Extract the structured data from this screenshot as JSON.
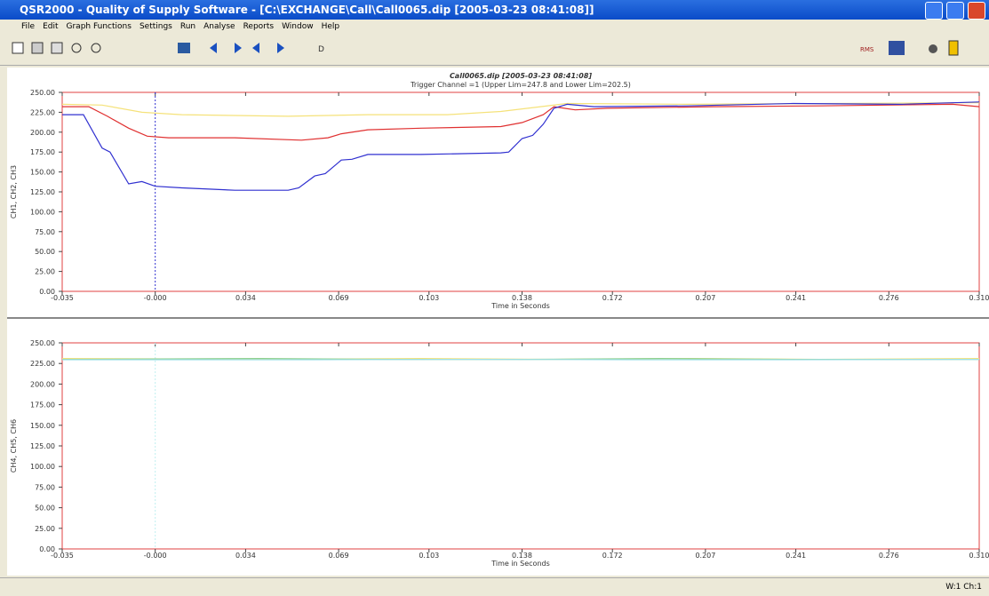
{
  "window": {
    "title": "QSR2000 - Quality of Supply Software - [C:\\EXCHANGE\\Call\\Call0065.dip [2005-03-23 08:41:08]]"
  },
  "menu": [
    "File",
    "Edit",
    "Graph Functions",
    "Settings",
    "Run",
    "Analyse",
    "Reports",
    "Window",
    "Help"
  ],
  "toolbar": {
    "d_label": "D",
    "rms_label": "RMS"
  },
  "status": "W:1 Ch:1",
  "chart_data": [
    {
      "type": "line",
      "title": "Call0065.dip [2005-03-23 08:41:08]",
      "subtitle": "Trigger Channel =1 (Upper Lim=247.8 and Lower Lim=202.5)",
      "y_label": "CH1, CH2, CH3",
      "x_label": "Time in Seconds",
      "xlim": [
        -0.035,
        0.31
      ],
      "ylim": [
        0,
        250
      ],
      "xticks": [
        {
          "value": -0.035,
          "label": "-0.035"
        },
        {
          "value": 0,
          "label": "-0.000"
        },
        0.034,
        0.069,
        0.103,
        0.138,
        0.172,
        0.207,
        0.241,
        0.276,
        {
          "value": 0.31,
          "label": "0.310"
        }
      ],
      "yticks": [
        {
          "value": 0,
          "label": "0.00"
        },
        {
          "value": 25,
          "label": "25.00"
        },
        {
          "value": 50,
          "label": "50.00"
        },
        {
          "value": 75,
          "label": "75.00"
        },
        {
          "value": 100,
          "label": "100.00"
        },
        {
          "value": 125,
          "label": "125.00"
        },
        {
          "value": 150,
          "label": "150.00"
        },
        {
          "value": 175,
          "label": "175.00"
        },
        {
          "value": 200,
          "label": "200.00"
        },
        {
          "value": 225,
          "label": "225.00"
        },
        {
          "value": 250,
          "label": "250.00"
        }
      ],
      "series": [
        {
          "color": "#f5e27a",
          "x": [
            -0.035,
            -0.02,
            -0.005,
            0.01,
            0.05,
            0.08,
            0.11,
            0.13,
            0.145,
            0.155,
            0.2,
            0.31
          ],
          "values": [
            235,
            234,
            225,
            222,
            220,
            222,
            222,
            226,
            232,
            236,
            235,
            237
          ]
        },
        {
          "color": "#e03030",
          "x": [
            -0.035,
            -0.025,
            -0.018,
            -0.01,
            -0.003,
            0.005,
            0.03,
            0.055,
            0.065,
            0.07,
            0.08,
            0.1,
            0.13,
            0.138,
            0.146,
            0.15,
            0.158,
            0.17,
            0.21,
            0.25,
            0.3,
            0.31
          ],
          "values": [
            232,
            232,
            220,
            205,
            195,
            193,
            193,
            190,
            193,
            198,
            203,
            205,
            207,
            212,
            222,
            232,
            228,
            230,
            232,
            233,
            235,
            232
          ]
        },
        {
          "color": "#3030d0",
          "x": [
            -0.035,
            -0.027,
            -0.02,
            -0.017,
            -0.01,
            -0.005,
            0,
            0.01,
            0.03,
            0.05,
            0.054,
            0.06,
            0.064,
            0.07,
            0.074,
            0.08,
            0.1,
            0.13,
            0.133,
            0.138,
            0.142,
            0.146,
            0.15,
            0.155,
            0.165,
            0.2,
            0.24,
            0.28,
            0.31
          ],
          "values": [
            222,
            222,
            180,
            175,
            135,
            138,
            132,
            130,
            127,
            127,
            130,
            145,
            148,
            165,
            166,
            172,
            172,
            174,
            175,
            192,
            196,
            210,
            230,
            235,
            232,
            233,
            236,
            235,
            238
          ]
        }
      ]
    },
    {
      "type": "line",
      "y_label": "CH4, CH5, CH6",
      "x_label": "Time in Seconds",
      "xlim": [
        -0.035,
        0.31
      ],
      "ylim": [
        0,
        250
      ],
      "xticks": [
        {
          "value": -0.035,
          "label": "-0.035"
        },
        {
          "value": 0,
          "label": "-0.000"
        },
        0.034,
        0.069,
        0.103,
        0.138,
        0.172,
        0.207,
        0.241,
        0.276,
        {
          "value": 0.31,
          "label": "0.310"
        }
      ],
      "yticks": [
        {
          "value": 0,
          "label": "0.00"
        },
        {
          "value": 25,
          "label": "25.00"
        },
        {
          "value": 50,
          "label": "50.00"
        },
        {
          "value": 75,
          "label": "75.00"
        },
        {
          "value": 100,
          "label": "100.00"
        },
        {
          "value": 125,
          "label": "125.00"
        },
        {
          "value": 150,
          "label": "150.00"
        },
        {
          "value": 175,
          "label": "175.00"
        },
        {
          "value": 200,
          "label": "200.00"
        },
        {
          "value": 225,
          "label": "225.00"
        },
        {
          "value": 250,
          "label": "250.00"
        }
      ],
      "series": [
        {
          "color": "#f5e27a",
          "x": [
            -0.035,
            0.05,
            0.1,
            0.15,
            0.2,
            0.25,
            0.31
          ],
          "values": [
            231,
            230,
            231,
            230,
            231,
            230,
            231
          ]
        },
        {
          "color": "#8fd08f",
          "x": [
            -0.035,
            0.04,
            0.09,
            0.14,
            0.19,
            0.24,
            0.31
          ],
          "values": [
            230,
            231,
            230,
            230,
            231,
            230,
            230
          ]
        },
        {
          "color": "#9fe0e8",
          "x": [
            -0.035,
            0.06,
            0.12,
            0.18,
            0.24,
            0.31
          ],
          "values": [
            229.5,
            229.5,
            230,
            229.5,
            229.5,
            230
          ]
        }
      ]
    }
  ]
}
